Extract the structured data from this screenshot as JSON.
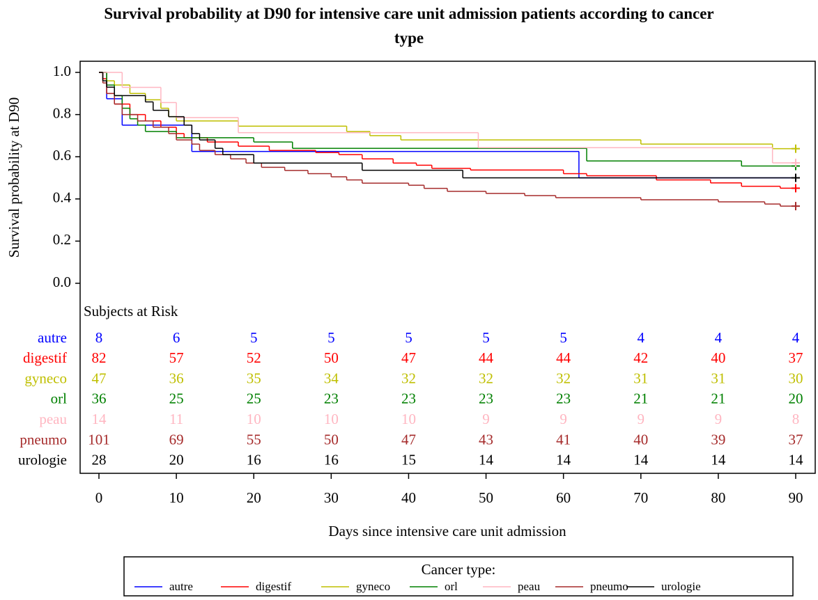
{
  "chart_data": {
    "type": "km-step",
    "title": "Survival probability at D90 for intensive care unit admission patients according to cancer type",
    "x_label": "Days since intensive care unit admission",
    "y_label": "Survival probability at D90",
    "xlim": [
      0,
      90
    ],
    "xticks": [
      0,
      10,
      20,
      30,
      40,
      50,
      60,
      70,
      80,
      90
    ],
    "ylim": [
      0,
      1
    ],
    "yticks": [
      {
        "value": 0,
        "label": "0.0"
      },
      {
        "value": 0.2,
        "label": "0.2"
      },
      {
        "value": 0.4,
        "label": "0.4"
      },
      {
        "value": 0.6,
        "label": "0.6"
      },
      {
        "value": 0.8,
        "label": "0.8"
      },
      {
        "value": 1,
        "label": "1.0"
      }
    ],
    "risk_title": "Subjects at Risk",
    "legend_title": "Cancer type:",
    "legend": "bottom",
    "series": [
      {
        "name": "autre",
        "color": "#0000ff",
        "x": [
          0,
          1,
          3,
          12,
          62,
          90
        ],
        "values": [
          1.0,
          0.875,
          0.75,
          0.625,
          0.5,
          0.5
        ],
        "at_risk": [
          8,
          6,
          5,
          5,
          5,
          5,
          5,
          4,
          4,
          4
        ]
      },
      {
        "name": "digestif",
        "color": "#ff0000",
        "x": [
          0,
          0.5,
          1,
          2,
          4,
          6,
          8,
          10,
          11,
          14,
          18,
          22,
          28,
          31,
          34,
          38,
          41,
          43,
          48,
          60,
          63,
          72,
          79,
          83,
          88,
          90
        ],
        "values": [
          1.0,
          0.97,
          0.9,
          0.85,
          0.8,
          0.77,
          0.74,
          0.71,
          0.69,
          0.67,
          0.65,
          0.63,
          0.62,
          0.61,
          0.59,
          0.57,
          0.56,
          0.545,
          0.537,
          0.52,
          0.51,
          0.49,
          0.476,
          0.46,
          0.451,
          0.451
        ],
        "at_risk": [
          82,
          57,
          52,
          50,
          47,
          44,
          44,
          42,
          40,
          37
        ]
      },
      {
        "name": "gyneco",
        "color": "#bfbf00",
        "x": [
          0,
          1,
          2,
          4,
          6,
          8,
          9,
          10,
          18,
          32,
          35,
          39,
          70,
          87,
          90
        ],
        "values": [
          1.0,
          0.96,
          0.94,
          0.9,
          0.87,
          0.83,
          0.79,
          0.77,
          0.745,
          0.72,
          0.7,
          0.68,
          0.66,
          0.638,
          0.638
        ],
        "at_risk": [
          47,
          36,
          35,
          34,
          32,
          32,
          32,
          31,
          31,
          30
        ]
      },
      {
        "name": "orl",
        "color": "#008000",
        "x": [
          0,
          1,
          2,
          3,
          4,
          5,
          6,
          10,
          20,
          25,
          63,
          83,
          90
        ],
        "values": [
          1.0,
          0.94,
          0.89,
          0.83,
          0.78,
          0.75,
          0.72,
          0.69,
          0.67,
          0.64,
          0.58,
          0.556,
          0.556
        ],
        "at_risk": [
          36,
          25,
          25,
          23,
          23,
          23,
          23,
          21,
          21,
          20
        ]
      },
      {
        "name": "peau",
        "color": "#ffb6c1",
        "x": [
          0,
          3,
          8,
          10,
          18,
          49,
          87,
          90
        ],
        "values": [
          1.0,
          0.929,
          0.857,
          0.786,
          0.714,
          0.643,
          0.571,
          0.571
        ],
        "at_risk": [
          14,
          11,
          10,
          10,
          10,
          9,
          9,
          9,
          9,
          8
        ]
      },
      {
        "name": "pneumo",
        "color": "#a52a2a",
        "x": [
          0,
          0.5,
          1,
          2,
          3,
          5,
          7,
          9,
          10,
          12,
          13,
          15,
          17,
          19,
          21,
          24,
          27,
          30,
          32,
          34,
          40,
          42,
          45,
          50,
          55,
          59,
          70,
          80,
          86,
          88,
          90
        ],
        "values": [
          1.0,
          0.95,
          0.9,
          0.85,
          0.8,
          0.77,
          0.74,
          0.71,
          0.68,
          0.66,
          0.63,
          0.61,
          0.59,
          0.57,
          0.55,
          0.535,
          0.52,
          0.505,
          0.49,
          0.475,
          0.465,
          0.45,
          0.436,
          0.426,
          0.416,
          0.406,
          0.396,
          0.386,
          0.376,
          0.366,
          0.366
        ],
        "at_risk": [
          101,
          69,
          55,
          50,
          47,
          43,
          41,
          40,
          39,
          37
        ]
      },
      {
        "name": "urologie",
        "color": "#000000",
        "x": [
          0,
          0.5,
          1,
          2,
          6,
          7,
          9,
          11,
          12,
          13,
          15,
          16,
          20,
          34,
          47,
          90
        ],
        "values": [
          1.0,
          0.96,
          0.93,
          0.89,
          0.86,
          0.82,
          0.79,
          0.75,
          0.71,
          0.68,
          0.64,
          0.61,
          0.57,
          0.536,
          0.5,
          0.5
        ],
        "at_risk": [
          28,
          20,
          16,
          16,
          15,
          14,
          14,
          14,
          14,
          14
        ]
      }
    ]
  }
}
